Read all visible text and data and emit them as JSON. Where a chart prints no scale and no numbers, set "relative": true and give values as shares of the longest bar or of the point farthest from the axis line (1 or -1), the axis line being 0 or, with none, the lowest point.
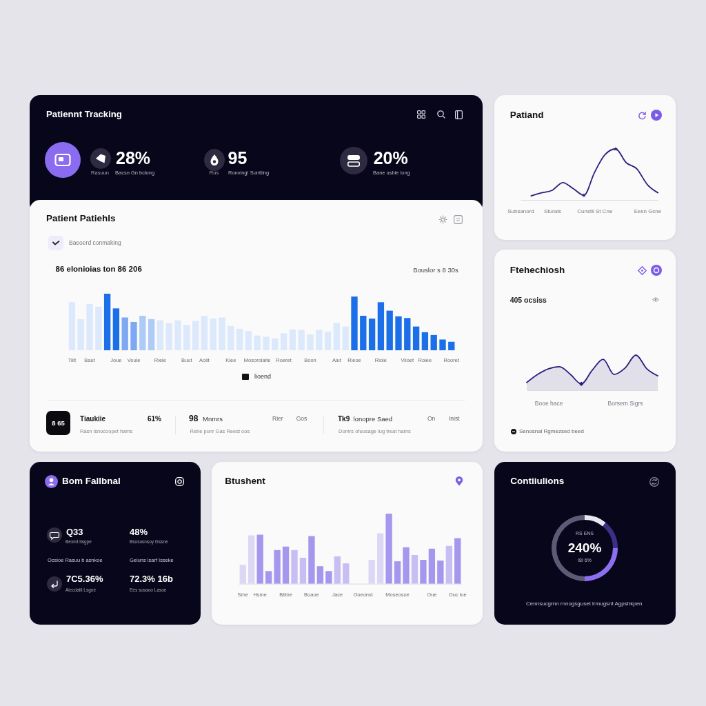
{
  "chart_data": [
    {
      "type": "other",
      "title": "Patiennt Tracking",
      "annotations": [
        "Rasuun",
        "28%",
        "Bacsn Gn bclong",
        "Rus",
        "95",
        "Ronving! Suntting",
        "20%",
        "Bane usbie long"
      ]
    },
    {
      "type": "line",
      "title": "Patiand",
      "relative": true,
      "categories": [
        "Subsanord",
        null,
        null,
        "Sturals",
        null,
        null,
        null,
        "Cunstil St Cne",
        null,
        null,
        null,
        null,
        "Eesn Gcne",
        null
      ],
      "series": [
        {
          "type": "line",
          "color": "#2b1d7c",
          "values": [
            null,
            0.08,
            0.14,
            0.19,
            0.34,
            0.22,
            0.09,
            0.54,
            0.89,
            1,
            0.73,
            0.61,
            0.3,
            0.14
          ]
        },
        {
          "type": "scatter",
          "color": "#2b1d7c",
          "marker": "star",
          "values": [
            null,
            null,
            null,
            null,
            null,
            null,
            0.09,
            null,
            null,
            1,
            null,
            null,
            null,
            null
          ]
        }
      ]
    },
    {
      "type": "bar",
      "title": "Patient Patiehls",
      "subtitle": "Baeoerd conmaking",
      "relative": true,
      "categories": [
        "Tiiit",
        null,
        "Baut",
        null,
        null,
        "Joue",
        null,
        "Vouie",
        null,
        null,
        "Rieie",
        null,
        null,
        "Buut",
        null,
        "Aoiit",
        null,
        null,
        "Kiee",
        null,
        null,
        "Mosorolaite",
        null,
        null,
        "Roeret",
        null,
        null,
        "Boon",
        null,
        null,
        "Aiut",
        null,
        "Rieoe",
        null,
        null,
        "Rioie",
        null,
        null,
        "Viioet",
        null,
        "Roiee",
        null,
        null,
        "Rooret"
      ],
      "values": [
        0.85,
        0.55,
        0.82,
        0.77,
        1,
        0.74,
        0.58,
        0.5,
        0.61,
        0.55,
        0.53,
        0.48,
        0.53,
        0.45,
        0.52,
        0.61,
        0.56,
        0.58,
        0.43,
        0.38,
        0.34,
        0.26,
        0.24,
        0.21,
        0.3,
        0.37,
        0.36,
        0.28,
        0.36,
        0.33,
        0.48,
        0.42,
        0.95,
        0.61,
        0.56,
        0.85,
        0.7,
        0.6,
        0.57,
        0.42,
        0.32,
        0.27,
        0.19,
        0.15
      ],
      "colors": [
        "#dce8fb",
        "#dce8fb",
        "#dce8fb",
        "#dce8fb",
        "#1b6fe9",
        "#1b6fe9",
        "#7ca9f2",
        "#7ca9f2",
        "#aecaf6",
        "#aecaf6",
        "#dce8fb",
        "#dce8fb",
        "#dce8fb",
        "#dce8fb",
        "#dce8fb",
        "#dce8fb",
        "#dce8fb",
        "#dce8fb",
        "#dce8fb",
        "#dce8fb",
        "#dce8fb",
        "#dce8fb",
        "#dce8fb",
        "#dce8fb",
        "#dce8fb",
        "#dce8fb",
        "#dce8fb",
        "#dce8fb",
        "#dce8fb",
        "#dce8fb",
        "#dce8fb",
        "#dce8fb",
        "#1b6fe9",
        "#1b6fe9",
        "#1b6fe9",
        "#1b6fe9",
        "#1b6fe9",
        "#1b6fe9",
        "#1b6fe9",
        "#1b6fe9",
        "#1b6fe9",
        "#1b6fe9",
        "#1b6fe9",
        "#1b6fe9"
      ],
      "annotations": [
        "86 elonioias ton 86 206",
        "Bouslor s 8 30s",
        "lioend",
        "8 65",
        "Tiaukiie",
        "61%",
        "Rasn lsnocoopet hams",
        "98",
        "Mnmrs",
        "Rier",
        "Gos",
        "Rebe punr Gas Reest oos",
        "Tk9",
        "lonopre Saed",
        "On",
        "Inist",
        "Domrs ofuusage lug treat hams"
      ]
    },
    {
      "type": "area",
      "title": "Ftehechiosh",
      "subtitle": "405 ocsiss",
      "relative": true,
      "categories": [
        null,
        null,
        "Booe hace",
        null,
        null,
        null,
        null,
        null,
        null,
        "Borsem Sigrs",
        null,
        null,
        null
      ],
      "series": [
        {
          "type": "area",
          "color": "#2b1d7c",
          "values": [
            0.22,
            0.45,
            0.61,
            0.67,
            0.45,
            0.18,
            0.57,
            0.88,
            0.45,
            0.63,
            1,
            0.61,
            0.41
          ]
        },
        {
          "type": "scatter",
          "color": "#2b1d7c",
          "marker": "diamond",
          "values": [
            null,
            null,
            null,
            null,
            null,
            0.18,
            null,
            null,
            null,
            null,
            null,
            null,
            null
          ]
        }
      ],
      "annotations": [
        "Senosnal Rgmezsed beed"
      ]
    },
    {
      "type": "other",
      "title": "Bom Fallbnal",
      "annotations": [
        "Q33",
        "Bexmt bsgpe",
        "48%",
        "Bsosusnsoy Gssne",
        "Ocsioe Rasuu b asnkoe",
        "Geiuns lsarf Isseke",
        "7C5.36%",
        "Aiecdaiit Lsgoe",
        "72.3% 16b",
        "Ees susaoo Lasoe"
      ]
    },
    {
      "type": "bar",
      "title": "Btushent",
      "relative": true,
      "categories": [
        "Sme",
        null,
        "Hsme",
        null,
        null,
        "Btiine",
        null,
        null,
        "Boaoe",
        null,
        null,
        "Jace",
        null,
        null,
        "Ooeonst",
        null,
        null,
        null,
        "Moseosoe",
        null,
        null,
        null,
        "Oue",
        null,
        null,
        "Ouc lue"
      ],
      "values": [
        0.27,
        0.69,
        0.7,
        0.18,
        0.48,
        0.53,
        0.48,
        0.37,
        0.68,
        0.25,
        0.18,
        0.39,
        0.29,
        null,
        null,
        0.34,
        0.72,
        1,
        0.32,
        0.52,
        0.41,
        0.34,
        0.5,
        0.33,
        0.54,
        0.65
      ],
      "colors": [
        "#ddd7f6",
        "#ddd7f6",
        "#a697ee",
        "#a697ee",
        "#a697ee",
        "#a697ee",
        "#c8bef4",
        "#c8bef4",
        "#a697ee",
        "#a697ee",
        "#a697ee",
        "#c8bef4",
        "#c8bef4",
        null,
        null,
        "#ddd7f6",
        "#ddd7f6",
        "#a697ee",
        "#a697ee",
        "#a697ee",
        "#c8bef4",
        "#a697ee",
        "#a697ee",
        "#a697ee",
        "#c8bef4",
        "#a697ee"
      ]
    },
    {
      "type": "donut",
      "title": "Contiiulions",
      "categories": [
        null,
        null,
        null,
        null
      ],
      "values": [
        11,
        14,
        25,
        50
      ],
      "colors": [
        "#e9e7f1",
        "#3b2f86",
        "#8c6ff0",
        "#5d5a76"
      ],
      "annotations": [
        "RS ENS",
        "240%",
        "I8I 6%",
        "Cennsucgrnn rnnogsguset lrmugsnt Agpshkpen"
      ]
    }
  ]
}
